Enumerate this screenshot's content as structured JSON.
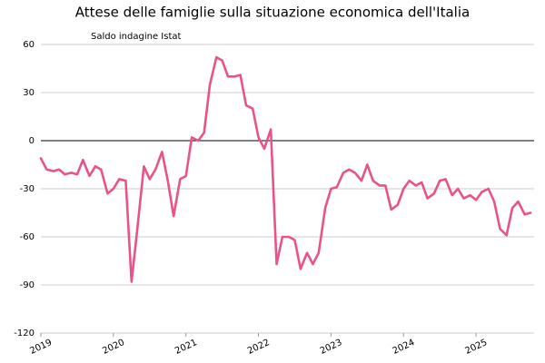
{
  "chart_data": {
    "type": "line",
    "title": "Attese delle famiglie sulla situazione economica dell'Italia",
    "subtitle": "Saldo indagine Istat",
    "x": [
      2019,
      2019.08,
      2019.17,
      2019.25,
      2019.33,
      2019.42,
      2019.5,
      2019.58,
      2019.67,
      2019.75,
      2019.83,
      2019.92,
      2020,
      2020.08,
      2020.17,
      2020.25,
      2020.33,
      2020.42,
      2020.5,
      2020.58,
      2020.67,
      2020.75,
      2020.83,
      2020.92,
      2021,
      2021.08,
      2021.17,
      2021.25,
      2021.33,
      2021.42,
      2021.5,
      2021.58,
      2021.67,
      2021.75,
      2021.83,
      2021.92,
      2022,
      2022.08,
      2022.17,
      2022.25,
      2022.33,
      2022.42,
      2022.5,
      2022.58,
      2022.67,
      2022.75,
      2022.83,
      2022.92,
      2023,
      2023.08,
      2023.17,
      2023.25,
      2023.33,
      2023.42,
      2023.5,
      2023.58,
      2023.67,
      2023.75,
      2023.83,
      2023.92,
      2024,
      2024.08,
      2024.17,
      2024.25,
      2024.33,
      2024.42,
      2024.5,
      2024.58,
      2024.67,
      2024.75,
      2024.83,
      2024.92,
      2025,
      2025.08,
      2025.17,
      2025.25,
      2025.33,
      2025.42,
      2025.5,
      2025.58,
      2025.67,
      2025.75
    ],
    "series": [
      {
        "color": "#e8538a",
        "values": [
          -11,
          -18,
          -19,
          -18,
          -21,
          -20,
          -21,
          -12,
          -22,
          -16,
          -18,
          -33,
          -30,
          -24,
          -25,
          -88,
          -55,
          -16,
          -24,
          -18,
          -7,
          -25,
          -47,
          -24,
          -22,
          2,
          0,
          5,
          35,
          52,
          50,
          40,
          40,
          41,
          22,
          20,
          2,
          -5,
          7,
          -77,
          -60,
          -60,
          -62,
          -80,
          -70,
          -77,
          -70,
          -42,
          -30,
          -29,
          -20,
          -18,
          -20,
          -25,
          -15,
          -25,
          -28,
          -28,
          -43,
          -40,
          -30,
          -25,
          -28,
          -26,
          -36,
          -33,
          -25,
          -24,
          -34,
          -30,
          -36,
          -34,
          -37,
          -32,
          -30,
          -38,
          -55,
          -59,
          -42,
          -38,
          -46,
          -45
        ]
      }
    ],
    "xlim": [
      2019,
      2025.8
    ],
    "xticks": [
      2019,
      2020,
      2021,
      2022,
      2023,
      2024,
      2025
    ],
    "ylim": [
      -120,
      60
    ],
    "yticks": [
      -120,
      -90,
      -60,
      -30,
      0,
      30,
      60
    ],
    "grid": true
  }
}
